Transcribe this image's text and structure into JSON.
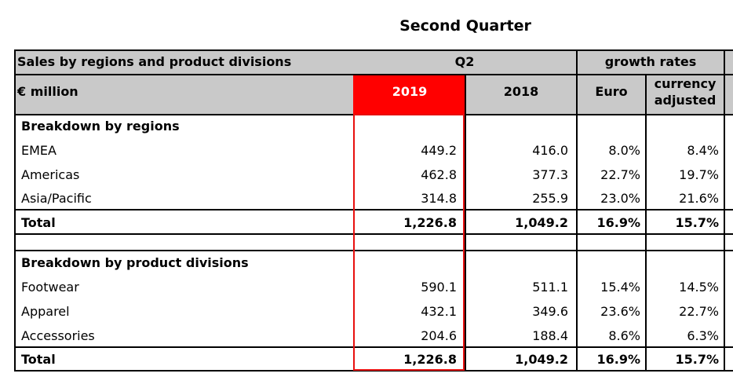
{
  "title": "Second Quarter",
  "header": {
    "sales_label": "Sales by regions and product divisions",
    "unit_label": "€ million",
    "q2": "Q2",
    "growth_rates": "growth rates",
    "year_2019": "2019",
    "year_2018": "2018",
    "euro": "Euro",
    "currency_line1": "currency",
    "currency_line2": "adjusted"
  },
  "regions": {
    "heading": "Breakdown by regions",
    "rows": [
      {
        "label": "EMEA",
        "v2019": "449.2",
        "v2018": "416.0",
        "euro": "8.0%",
        "cur": "8.4%"
      },
      {
        "label": "Americas",
        "v2019": "462.8",
        "v2018": "377.3",
        "euro": "22.7%",
        "cur": "19.7%"
      },
      {
        "label": "Asia/Pacific",
        "v2019": "314.8",
        "v2018": "255.9",
        "euro": "23.0%",
        "cur": "21.6%"
      }
    ],
    "total": {
      "label": "Total",
      "v2019": "1,226.8",
      "v2018": "1,049.2",
      "euro": "16.9%",
      "cur": "15.7%"
    }
  },
  "divisions": {
    "heading": "Breakdown by product divisions",
    "rows": [
      {
        "label": "Footwear",
        "v2019": "590.1",
        "v2018": "511.1",
        "euro": "15.4%",
        "cur": "14.5%"
      },
      {
        "label": "Apparel",
        "v2019": "432.1",
        "v2018": "349.6",
        "euro": "23.6%",
        "cur": "22.7%"
      },
      {
        "label": "Accessories",
        "v2019": "204.6",
        "v2018": "188.4",
        "euro": "8.6%",
        "cur": "6.3%"
      }
    ],
    "total": {
      "label": "Total",
      "v2019": "1,226.8",
      "v2018": "1,049.2",
      "euro": "16.9%",
      "cur": "15.7%"
    }
  },
  "colors": {
    "header_bg": "#c9c9c9",
    "highlight": "#ff0000"
  }
}
